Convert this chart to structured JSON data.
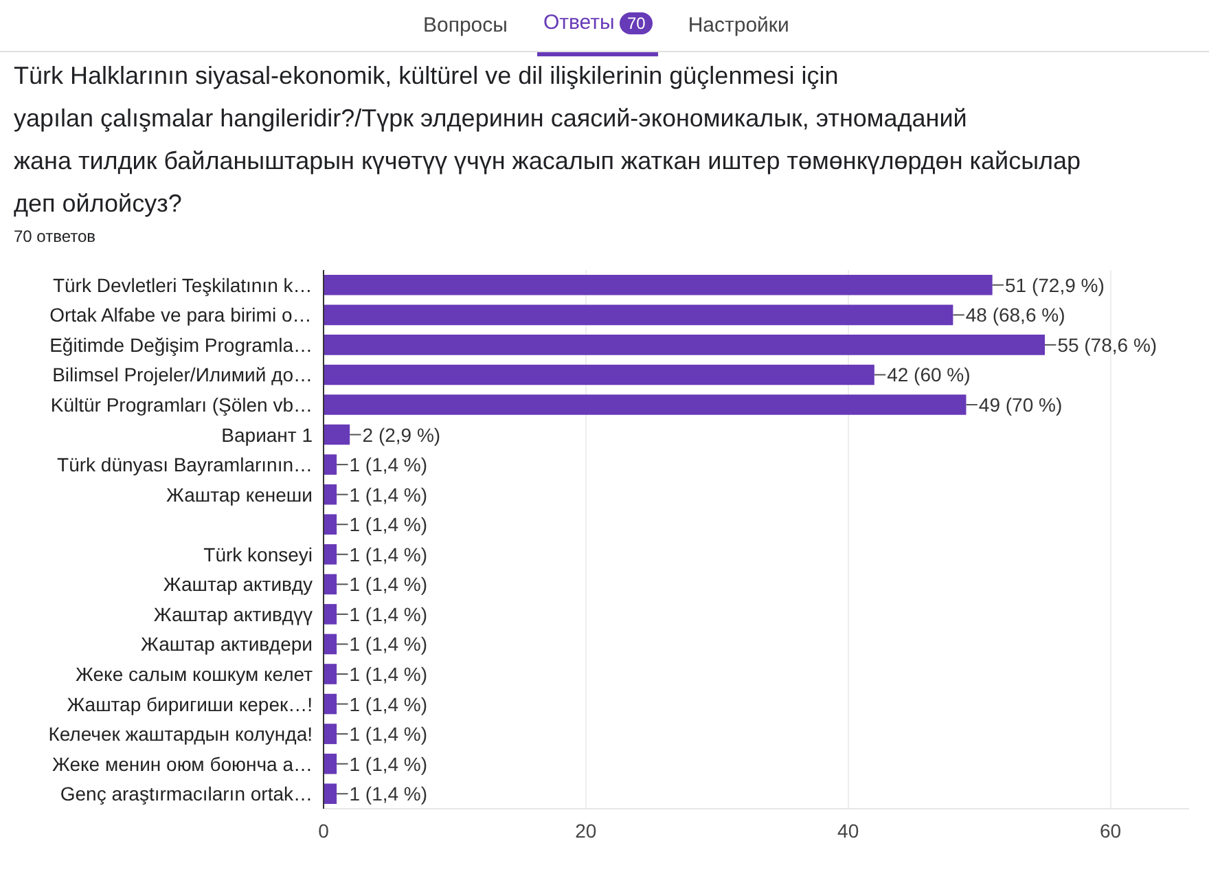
{
  "chart_data": {
    "type": "bar",
    "orientation": "horizontal",
    "title": "Türk Halklarının siyasal-ekonomik, kültürel ve dil ilişkilerinin güçlenmesi için yapılan çalışmalar hangileridir?/Түрк элдеринин саясий-экономикалык, этномаданий жана тилдик байланыштарын күчөтүү үчүн жасалып жаткан иштер төмөнкүлөрдөн кайсылар деп ойлойсуз?",
    "subtitle": "70 ответов",
    "annotations": [
      "Вопросы",
      "Ответы",
      "70",
      "Настройки"
    ],
    "categories": [
      "Türk Devletleri Teşkilatının k…",
      "Ortak Alfabe ve para birimi o…",
      "Eğitimde Değişim Programla…",
      "Bilimsel Projeler/Илимий до…",
      "Kültür Programları (Şölen vb…",
      "Вариант 1",
      "Türk dünyası Bayramlarının…",
      "Жаштар кенеши",
      null,
      "Türk konseyi",
      "Жаштар активду",
      "Жаштар активдүү",
      "Жаштар активдери",
      "Жеке салым кошкум келет",
      "Жаштар биригиши керек…!",
      "Келечек жаштардын колунда!",
      "Жеке менин оюм боюнча а…",
      "Genç araştırmacıların ortak…"
    ],
    "values": [
      51,
      48,
      55,
      42,
      49,
      2,
      1,
      1,
      1,
      1,
      1,
      1,
      1,
      1,
      1,
      1,
      1,
      1
    ],
    "value_labels": [
      "51 (72,9 %)",
      "48 (68,6 %)",
      "55 (78,6 %)",
      "42 (60 %)",
      "49 (70 %)",
      "2 (2,9 %)",
      "1 (1,4 %)",
      "1 (1,4 %)",
      "1 (1,4 %)",
      "1 (1,4 %)",
      "1 (1,4 %)",
      "1 (1,4 %)",
      "1 (1,4 %)",
      "1 (1,4 %)",
      "1 (1,4 %)",
      "1 (1,4 %)",
      "1 (1,4 %)",
      "1 (1,4 %)"
    ],
    "color": "#673ab7",
    "xlim": [
      0,
      66
    ],
    "xticks": [
      0,
      20,
      40,
      60
    ],
    "grid": "x"
  }
}
